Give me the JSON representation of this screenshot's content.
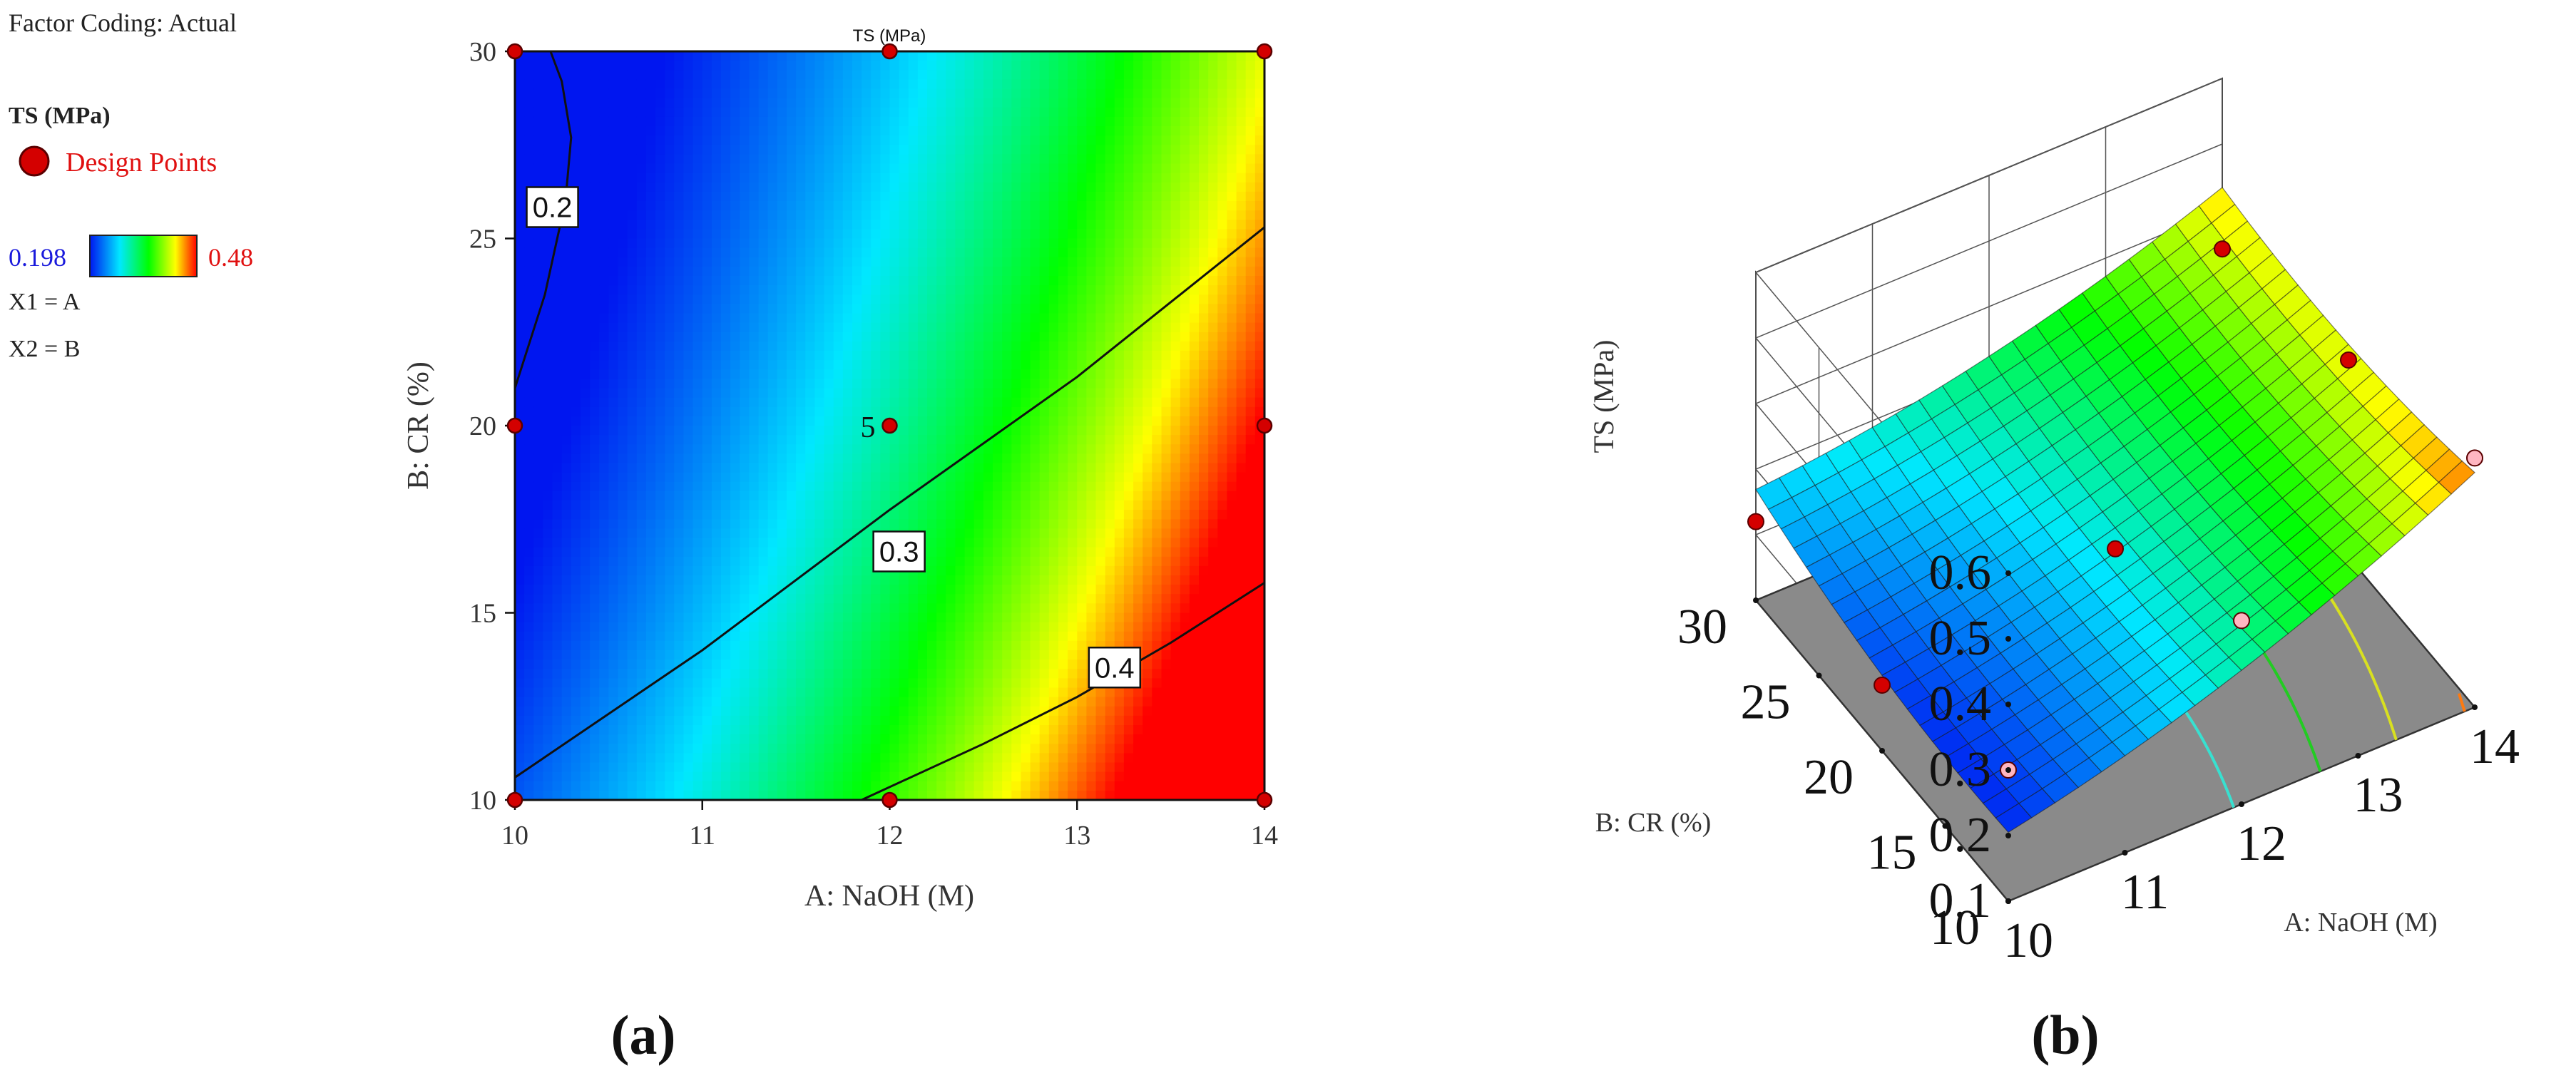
{
  "legend": {
    "factor_coding": "Factor Coding: Actual",
    "response_title": "TS (MPa)",
    "design_points_label": "Design Points",
    "range_min": "0.198",
    "range_max": "0.48",
    "x1_def": "X1 = A",
    "x2_def": "X2 = B",
    "colors": {
      "low": "#0016f0",
      "high": "#ff0000",
      "design_point": "#d40000",
      "min_text": "#1a1adc",
      "max_text": "#e01010"
    }
  },
  "chart_data": [
    {
      "type": "heatmap",
      "panel_label": "(a)",
      "title": "TS (MPa)",
      "xlabel": "A: NaOH (M)",
      "ylabel": "B: CR (%)",
      "xlim": [
        10,
        14
      ],
      "ylim": [
        10,
        30
      ],
      "xticks": [
        "10",
        "11",
        "12",
        "13",
        "14"
      ],
      "yticks": [
        "10",
        "15",
        "20",
        "25",
        "30"
      ],
      "color_range": [
        0.198,
        0.48
      ],
      "contours": [
        {
          "level": "0.2",
          "points": [
            [
              10.0,
              21.0
            ],
            [
              10.16,
              23.5
            ],
            [
              10.27,
              26.0
            ],
            [
              10.3,
              27.7
            ],
            [
              10.25,
              29.2
            ],
            [
              10.19,
              30.0
            ]
          ]
        },
        {
          "level": "0.3",
          "points": [
            [
              10.0,
              10.6
            ],
            [
              11.0,
              14.0
            ],
            [
              12.0,
              17.75
            ],
            [
              13.0,
              21.3
            ],
            [
              14.0,
              25.3
            ]
          ]
        },
        {
          "level": "0.4",
          "points": [
            [
              11.85,
              10.0
            ],
            [
              12.5,
              11.5
            ],
            [
              13.0,
              12.75
            ],
            [
              13.5,
              14.2
            ],
            [
              14.0,
              15.8
            ]
          ]
        }
      ],
      "contour_label_positions": [
        [
          10.2,
          25.8
        ],
        [
          12.05,
          16.6
        ],
        [
          13.2,
          13.5
        ]
      ],
      "design_points": [
        [
          10,
          10
        ],
        [
          10,
          20
        ],
        [
          10,
          30
        ],
        [
          12,
          10
        ],
        [
          12,
          20
        ],
        [
          12,
          30
        ],
        [
          14,
          10
        ],
        [
          14,
          20
        ],
        [
          14,
          30
        ]
      ],
      "point_annotation": {
        "text": "5",
        "x": 12,
        "y": 20
      }
    },
    {
      "type": "surface",
      "panel_label": "(b)",
      "xlabel": "A: NaOH (M)",
      "ylabel": "B: CR (%)",
      "zlabel": "TS (MPa)",
      "xticks": [
        "10",
        "11",
        "12",
        "13",
        "14"
      ],
      "yticks": [
        "10",
        "15",
        "20",
        "25",
        "30"
      ],
      "zticks": [
        "0.1",
        "0.2",
        "0.3",
        "0.4",
        "0.5",
        "0.6"
      ],
      "zlim": [
        0.1,
        0.6
      ],
      "color_range": [
        0.198,
        0.48
      ],
      "floor_contours": [
        0.2,
        0.3,
        0.35,
        0.4,
        0.45
      ],
      "contour_colors": [
        "#2f8fd8",
        "#38e0d0",
        "#22cc22",
        "#d8e020",
        "#ff7a10"
      ],
      "design_points": [
        {
          "a": 10,
          "b": 30,
          "ts": 0.22
        },
        {
          "a": 10,
          "b": 10,
          "ts": 0.3
        },
        {
          "a": 12,
          "b": 20,
          "ts": 0.26
        },
        {
          "a": 14,
          "b": 30,
          "ts": 0.34
        },
        {
          "a": 14,
          "b": 10,
          "ts": 0.48
        },
        {
          "a": 12,
          "b": 10,
          "ts": 0.38
        },
        {
          "a": 10,
          "b": 20,
          "ts": 0.2
        },
        {
          "a": 14,
          "b": 20,
          "ts": 0.4
        }
      ]
    }
  ]
}
